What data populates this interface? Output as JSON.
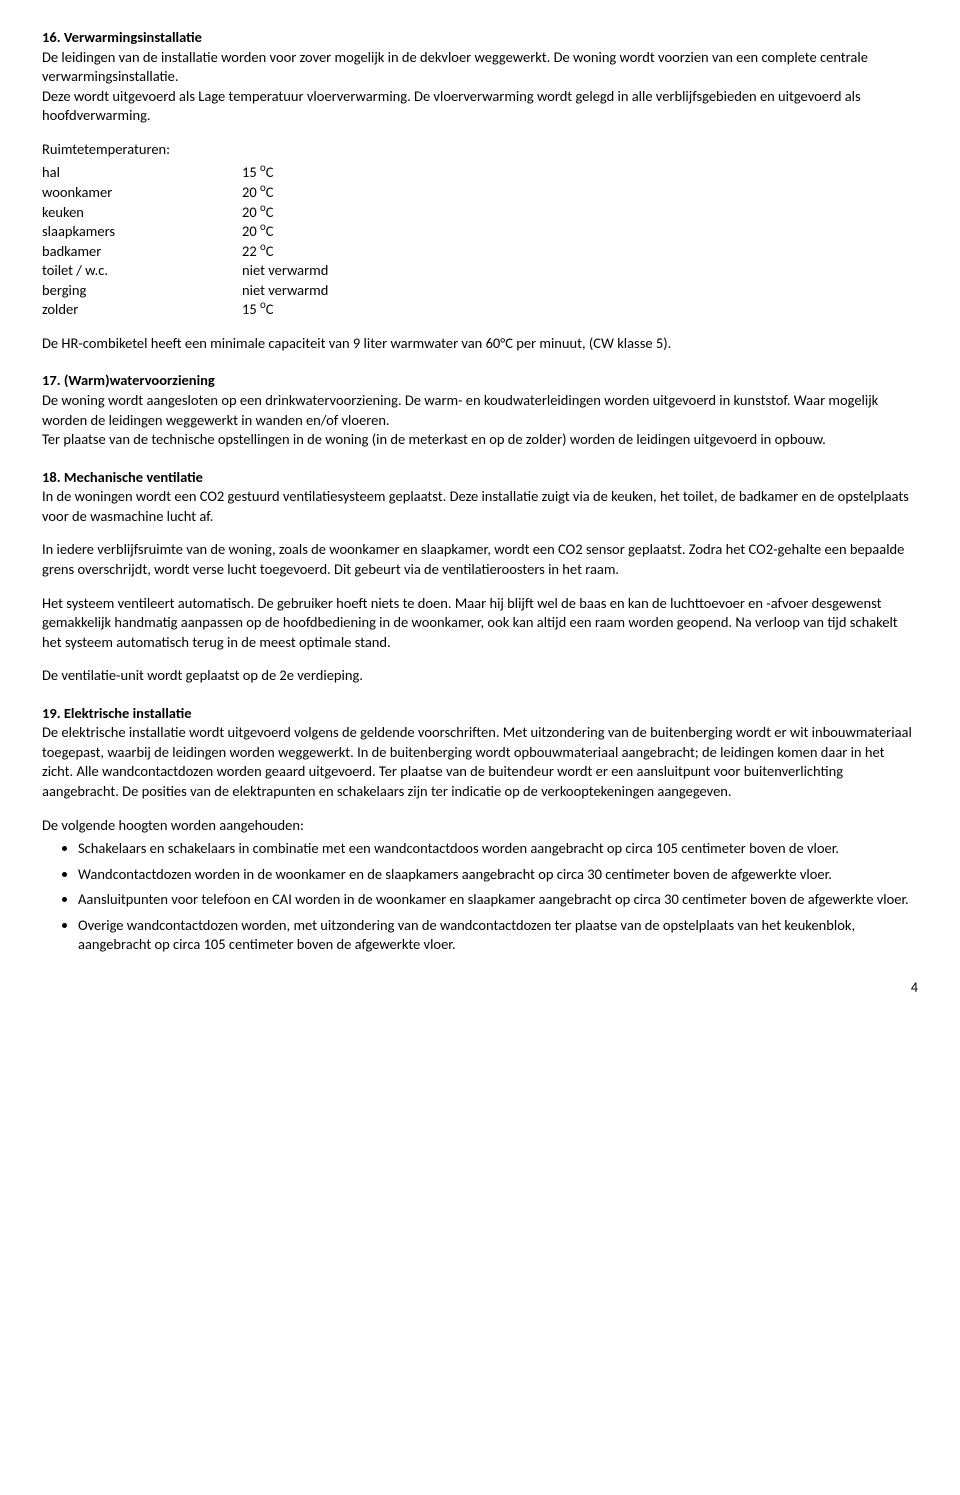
{
  "s16": {
    "heading": "16. Verwarmingsinstallatie",
    "p1": "De leidingen van de installatie worden voor zover mogelijk in de dekvloer weggewerkt. De woning wordt voorzien van een complete centrale verwarmingsinstallatie.",
    "p2": "Deze wordt uitgevoerd als Lage temperatuur vloerverwarming. De vloerverwarming wordt gelegd in alle verblijfsgebieden en uitgevoerd als hoofdverwarming.",
    "tempHeading": "Ruimtetemperaturen:",
    "rows": [
      {
        "label": "hal",
        "val": "15",
        "unit": "C",
        "sup": "o"
      },
      {
        "label": "woonkamer",
        "val": "20",
        "unit": "C",
        "sup": "o"
      },
      {
        "label": "keuken",
        "val": "20",
        "unit": "C",
        "sup": "o"
      },
      {
        "label": "slaapkamers",
        "val": "20",
        "unit": "C",
        "sup": "o"
      },
      {
        "label": "badkamer",
        "val": "22",
        "unit": "C",
        "sup": "o"
      },
      {
        "label": "toilet / w.c.",
        "val": "niet verwarmd",
        "unit": "",
        "sup": ""
      },
      {
        "label": "berging",
        "val": "niet verwarmd",
        "unit": "",
        "sup": ""
      },
      {
        "label": "zolder",
        "val": "15",
        "unit": "C",
        "sup": "o"
      }
    ],
    "p3": "De HR-combiketel heeft een minimale capaciteit van 9 liter warmwater van 60°C per minuut, (CW klasse 5)."
  },
  "s17": {
    "heading": "17. (Warm)watervoorziening",
    "p1": "De woning wordt aangesloten op een drinkwatervoorziening. De warm- en koudwaterleidingen worden uitgevoerd in kunststof. Waar mogelijk worden de leidingen weggewerkt in wanden en/of vloeren.",
    "p2": "Ter plaatse van de technische opstellingen in de woning (in de meterkast en op de zolder) worden de leidingen uitgevoerd in opbouw."
  },
  "s18": {
    "heading": "18. Mechanische ventilatie",
    "p1": "In de woningen wordt een CO2 gestuurd ventilatiesysteem geplaatst. Deze installatie zuigt via de keuken, het toilet, de badkamer en de opstelplaats voor de wasmachine lucht af.",
    "p2": "In iedere verblijfsruimte van de woning, zoals de woonkamer en slaapkamer, wordt een  CO2 sensor geplaatst. Zodra het CO2-gehalte een bepaalde grens overschrijdt, wordt verse lucht toegevoerd. Dit gebeurt via de ventilatieroosters in het raam.",
    "p3": "Het systeem ventileert automatisch. De gebruiker hoeft niets te doen. Maar hij blijft wel de baas en kan de luchttoevoer en -afvoer desgewenst gemakkelijk handmatig aanpassen op de hoofdbediening in de woonkamer, ook kan altijd een raam worden geopend. Na verloop van tijd schakelt het systeem automatisch terug in de meest optimale stand.",
    "p4": "De ventilatie-unit wordt geplaatst op de 2e verdieping."
  },
  "s19": {
    "heading": "19. Elektrische installatie",
    "p1": "De elektrische installatie wordt uitgevoerd volgens de geldende voorschriften. Met uitzondering van de buitenberging wordt er wit inbouwmateriaal toegepast, waarbij de leidingen worden weggewerkt. In de buitenberging wordt opbouwmateriaal aangebracht; de leidingen komen daar in het zicht. Alle wandcontactdozen worden geaard uitgevoerd. Ter plaatse van de buitendeur wordt er een aansluitpunt voor buitenverlichting aangebracht. De posities van de elektrapunten en schakelaars zijn ter indicatie op de verkooptekeningen aangegeven.",
    "listIntro": "De volgende hoogten worden aangehouden:",
    "bullets": [
      "Schakelaars en schakelaars in combinatie met een wandcontactdoos worden aangebracht op circa 105 centimeter boven de vloer.",
      "Wandcontactdozen worden in de woonkamer en de slaapkamers aangebracht op circa 30 centimeter boven de afgewerkte vloer.",
      "Aansluitpunten voor telefoon en CAI worden in de woonkamer en slaapkamer aangebracht op circa 30 centimeter boven de afgewerkte vloer.",
      "Overige wandcontactdozen worden, met uitzondering van de wandcontactdozen ter plaatse van de opstelplaats van het keukenblok, aangebracht op circa 105 centimeter boven de afgewerkte vloer."
    ]
  },
  "pageNumber": "4"
}
